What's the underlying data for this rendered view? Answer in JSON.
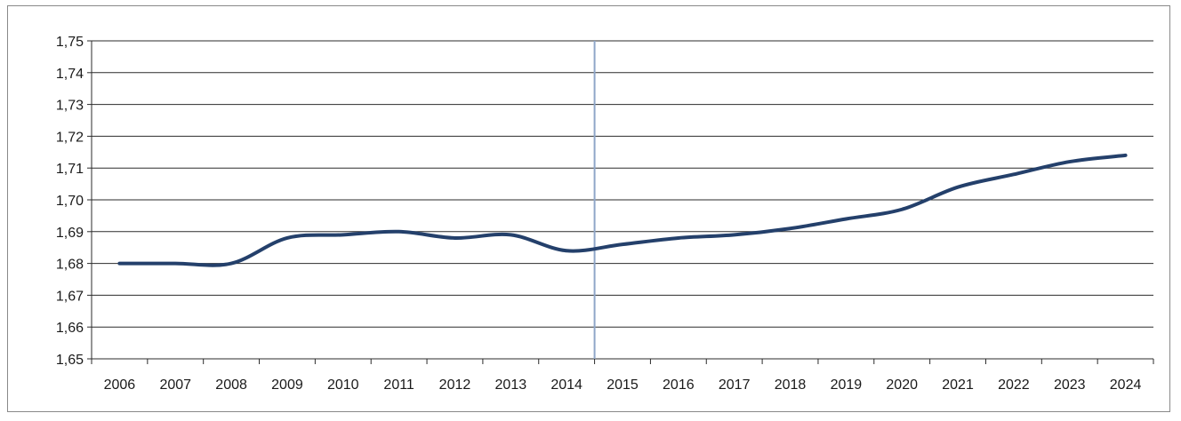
{
  "chart_data": {
    "type": "line",
    "title": "",
    "xlabel": "",
    "ylabel": "",
    "categories": [
      "2006",
      "2007",
      "2008",
      "2009",
      "2010",
      "2011",
      "2012",
      "2013",
      "2014",
      "2015",
      "2016",
      "2017",
      "2018",
      "2019",
      "2020",
      "2021",
      "2022",
      "2023",
      "2024"
    ],
    "series": [
      {
        "values": [
          1.68,
          1.68,
          1.68,
          1.688,
          1.689,
          1.69,
          1.688,
          1.689,
          1.684,
          1.686,
          1.688,
          1.689,
          1.691,
          1.694,
          1.697,
          1.704,
          1.708,
          1.712,
          1.714
        ],
        "color": "#24406b"
      }
    ],
    "ylim": [
      1.65,
      1.75
    ],
    "yticks": [
      "1,65",
      "1,66",
      "1,67",
      "1,68",
      "1,69",
      "1,70",
      "1,71",
      "1,72",
      "1,73",
      "1,74",
      "1,75"
    ],
    "marker_line_at": "2015",
    "marker_line_color": "#8fa6c8",
    "grid": true,
    "legend": "none"
  }
}
